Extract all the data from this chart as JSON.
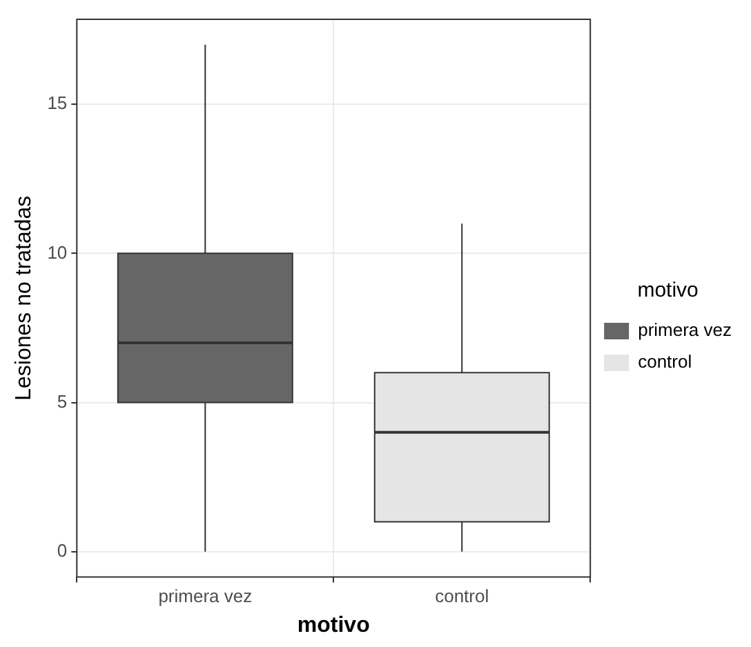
{
  "chart_data": {
    "type": "box",
    "xlabel": "motivo",
    "ylabel": "Lesiones no tratadas",
    "legend_title": "motivo",
    "categories": [
      "primera vez",
      "control"
    ],
    "series": [
      {
        "name": "primera vez",
        "color": "#666666",
        "boxes": [
          {
            "low": 0,
            "q1": 5,
            "median": 7,
            "q3": 10,
            "high": 17
          },
          null
        ]
      },
      {
        "name": "control",
        "color": "#e5e5e5",
        "boxes": [
          null,
          {
            "low": 0,
            "q1": 1,
            "median": 4,
            "q3": 6,
            "high": 11
          }
        ]
      }
    ],
    "ylim": [
      -0.85,
      17.85
    ],
    "yticks": [
      0,
      5,
      10,
      15
    ],
    "grid": true,
    "legend": "right"
  }
}
